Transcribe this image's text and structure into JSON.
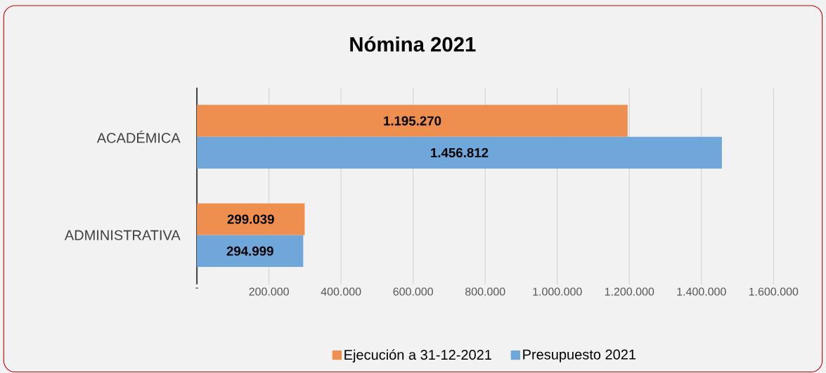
{
  "chart_data": {
    "type": "bar",
    "orientation": "horizontal",
    "title": "Nómina 2021",
    "categories": [
      "ACADÉMICA",
      "ADMINISTRATIVA"
    ],
    "series": [
      {
        "name": "Ejecución a 31-12-2021",
        "color": "#ef8f4f",
        "values": [
          1195270,
          299039
        ],
        "value_labels": [
          "1.195.270",
          "299.039"
        ]
      },
      {
        "name": "Presupuesto 2021",
        "color": "#6fa7db",
        "values": [
          1456812,
          294999
        ],
        "value_labels": [
          "1.456.812",
          "294.999"
        ]
      }
    ],
    "xlim": [
      0,
      1600000
    ],
    "xticks": [
      {
        "value": 0,
        "label": "-"
      },
      {
        "value": 200000,
        "label": "200.000"
      },
      {
        "value": 400000,
        "label": "400.000"
      },
      {
        "value": 600000,
        "label": "600.000"
      },
      {
        "value": 800000,
        "label": "800.000"
      },
      {
        "value": 1000000,
        "label": "1.000.000"
      },
      {
        "value": 1200000,
        "label": "1.200.000"
      },
      {
        "value": 1400000,
        "label": "1.400.000"
      },
      {
        "value": 1600000,
        "label": "1.600.000"
      }
    ],
    "grid": "x",
    "legend": "bottom"
  }
}
